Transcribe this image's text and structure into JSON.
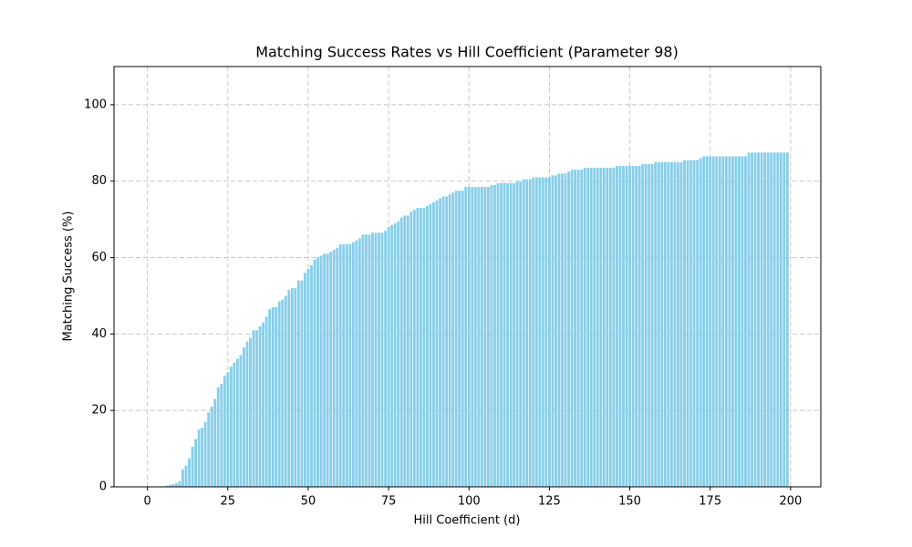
{
  "chart_data": {
    "type": "bar",
    "title": "Matching Success Rates vs Hill Coefficient (Parameter 98)",
    "x_label": "Hill Coefficient (d)",
    "y_label": "Matching Success (%)",
    "color": "#87ceeb",
    "grid": true,
    "xlim": [
      -10.4,
      209.4
    ],
    "ylim": [
      0,
      110
    ],
    "xticks": [
      0,
      25,
      50,
      75,
      100,
      125,
      150,
      175,
      200
    ],
    "yticks": [
      0,
      20,
      40,
      60,
      80,
      100
    ],
    "x": [
      0,
      1,
      2,
      3,
      4,
      5,
      6,
      7,
      8,
      9,
      10,
      11,
      12,
      13,
      14,
      15,
      16,
      17,
      18,
      19,
      20,
      21,
      22,
      23,
      24,
      25,
      26,
      27,
      28,
      29,
      30,
      31,
      32,
      33,
      34,
      35,
      36,
      37,
      38,
      39,
      40,
      41,
      42,
      43,
      44,
      45,
      46,
      47,
      48,
      49,
      50,
      51,
      52,
      53,
      54,
      55,
      56,
      57,
      58,
      59,
      60,
      61,
      62,
      63,
      64,
      65,
      66,
      67,
      68,
      69,
      70,
      71,
      72,
      73,
      74,
      75,
      76,
      77,
      78,
      79,
      80,
      81,
      82,
      83,
      84,
      85,
      86,
      87,
      88,
      89,
      90,
      91,
      92,
      93,
      94,
      95,
      96,
      97,
      98,
      99,
      100,
      101,
      102,
      103,
      104,
      105,
      106,
      107,
      108,
      109,
      110,
      111,
      112,
      113,
      114,
      115,
      116,
      117,
      118,
      119,
      120,
      121,
      122,
      123,
      124,
      125,
      126,
      127,
      128,
      129,
      130,
      131,
      132,
      133,
      134,
      135,
      136,
      137,
      138,
      139,
      140,
      141,
      142,
      143,
      144,
      145,
      146,
      147,
      148,
      149,
      150,
      151,
      152,
      153,
      154,
      155,
      156,
      157,
      158,
      159,
      160,
      161,
      162,
      163,
      164,
      165,
      166,
      167,
      168,
      169,
      170,
      171,
      172,
      173,
      174,
      175,
      176,
      177,
      178,
      179,
      180,
      181,
      182,
      183,
      184,
      185,
      186,
      187,
      188,
      189,
      190,
      191,
      192,
      193,
      194,
      195,
      196,
      197,
      198,
      199
    ],
    "values": [
      0,
      0,
      0,
      0,
      0,
      0,
      0.3,
      0.5,
      0.7,
      1,
      1.5,
      4.5,
      5.5,
      7.5,
      10.5,
      12.5,
      15,
      15.5,
      17,
      19.5,
      21,
      23,
      26,
      27,
      29,
      30,
      31.5,
      32.5,
      33.5,
      34.5,
      36.5,
      38,
      39,
      41,
      41,
      42,
      43,
      44.5,
      46.5,
      47,
      47,
      48.5,
      49,
      50,
      51.5,
      52,
      52,
      54,
      54,
      56,
      57,
      58,
      59.5,
      60,
      60.5,
      61,
      61,
      61.5,
      62,
      62.5,
      63.5,
      63.5,
      63.5,
      63.5,
      64,
      64.5,
      65,
      66,
      66,
      66,
      66.5,
      66.5,
      66.5,
      66.5,
      67,
      68,
      68.5,
      69,
      69.5,
      70.5,
      71,
      71,
      72,
      72.5,
      73,
      73,
      73,
      73.5,
      74,
      74.5,
      75,
      75.5,
      76,
      76,
      76.5,
      77,
      77.5,
      77.5,
      77.5,
      78.5,
      78.5,
      78.5,
      78.5,
      78.5,
      78.5,
      78.5,
      78.5,
      79,
      79,
      79.5,
      79.5,
      79.5,
      79.5,
      79.5,
      79.5,
      80,
      80,
      80.5,
      80.5,
      80.5,
      81,
      81,
      81,
      81,
      81,
      81,
      81.5,
      81.5,
      82,
      82,
      82,
      82.5,
      83,
      83,
      83,
      83,
      83.5,
      83.5,
      83.5,
      83.5,
      83.5,
      83.5,
      83.5,
      83.5,
      83.5,
      83.5,
      84,
      84,
      84,
      84,
      84,
      84,
      84,
      84,
      84.5,
      84.5,
      84.5,
      84.5,
      85,
      85,
      85,
      85,
      85,
      85,
      85,
      85,
      85,
      85.5,
      85.5,
      85.5,
      85.5,
      85.5,
      86,
      86.5,
      86.5,
      86.5,
      86.5,
      86.5,
      86.5,
      86.5,
      86.5,
      86.5,
      86.5,
      86.5,
      86.5,
      86.5,
      86.5,
      87.5,
      87.5,
      87.5,
      87.5,
      87.5,
      87.5,
      87.5,
      87.5,
      87.5,
      87.5,
      87.5,
      87.5,
      87.5
    ]
  }
}
